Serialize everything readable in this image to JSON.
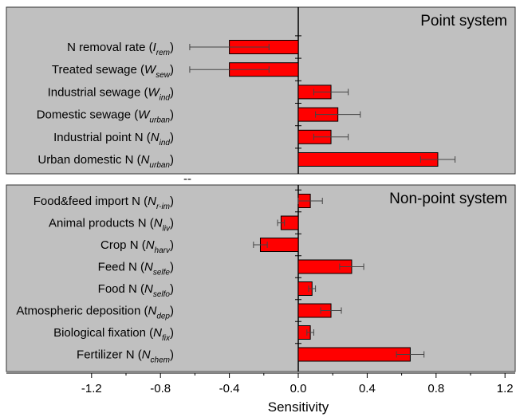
{
  "chart_data": {
    "type": "bar",
    "orientation": "horizontal",
    "xlabel": "Sensitivity",
    "xlim": [
      -1.2,
      1.2
    ],
    "xticks": [
      "-1.2",
      "-0.8",
      "-0.4",
      "0.0",
      "0.4",
      "0.8",
      "1.2"
    ],
    "xtick_values": [
      -1.2,
      -0.8,
      -0.4,
      0.0,
      0.4,
      0.8,
      1.2
    ],
    "bar_color": "#ff0000",
    "panel_color": "#c0c0c0",
    "separator": "--",
    "panels": [
      {
        "title": "Point system",
        "title_position": "top-right",
        "categories": [
          {
            "text": "N removal rate (",
            "var": "I",
            "sub": "rem",
            "close": ")"
          },
          {
            "text": "Treated sewage (",
            "var": "W",
            "sub": "sew",
            "close": ")"
          },
          {
            "text": "Industrial sewage (",
            "var": "W",
            "sub": "ind",
            "close": ")"
          },
          {
            "text": "Domestic sewage (",
            "var": "W",
            "sub": "urban",
            "close": ")"
          },
          {
            "text": "Industrial point N (",
            "var": "N",
            "sub": "ind",
            "close": ")"
          },
          {
            "text": "Urban domestic N (",
            "var": "N",
            "sub": "urban",
            "close": ")"
          }
        ],
        "values": [
          -0.4,
          -0.4,
          0.19,
          0.23,
          0.19,
          0.81
        ],
        "errors": [
          0.23,
          0.23,
          0.1,
          0.13,
          0.1,
          0.1
        ]
      },
      {
        "title": "Non-point system",
        "title_position": "top-right",
        "categories": [
          {
            "text": "Food&feed import N (",
            "var": "N",
            "sub": "r-im",
            "close": ")"
          },
          {
            "text": "Animal products N (",
            "var": "N",
            "sub": "liv",
            "close": ")"
          },
          {
            "text": "Crop N (",
            "var": "N",
            "sub": "harv",
            "close": ")"
          },
          {
            "text": "Feed N (",
            "var": "N",
            "sub": "selfe",
            "close": ")"
          },
          {
            "text": "Food N (",
            "var": "N",
            "sub": "selfo",
            "close": ")"
          },
          {
            "text": "Atmospheric deposition (",
            "var": "N",
            "sub": "dep",
            "close": ")"
          },
          {
            "text": "Biological fixation (",
            "var": "N",
            "sub": "fix",
            "close": ")"
          },
          {
            "text": "Fertilizer N  (",
            "var": "N",
            "sub": "chem",
            "close": ")"
          }
        ],
        "values": [
          0.07,
          -0.1,
          -0.22,
          0.31,
          0.08,
          0.19,
          0.07,
          0.65
        ],
        "errors": [
          0.07,
          0.02,
          0.04,
          0.07,
          0.02,
          0.06,
          0.02,
          0.08
        ]
      }
    ]
  }
}
